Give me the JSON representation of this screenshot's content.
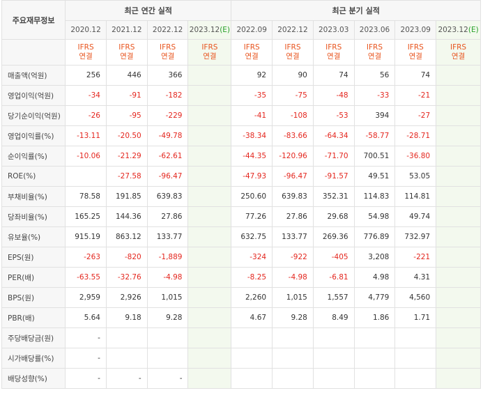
{
  "header": {
    "corner": "주요재무정보",
    "annual_group": "최근 연간 실적",
    "quarter_group": "최근 분기 실적",
    "periods": [
      {
        "label": "2020.12",
        "est": ""
      },
      {
        "label": "2021.12",
        "est": ""
      },
      {
        "label": "2022.12",
        "est": ""
      },
      {
        "label": "2023.12",
        "est": "(E)"
      },
      {
        "label": "2022.09",
        "est": ""
      },
      {
        "label": "2022.12",
        "est": ""
      },
      {
        "label": "2023.03",
        "est": ""
      },
      {
        "label": "2023.06",
        "est": ""
      },
      {
        "label": "2023.09",
        "est": ""
      },
      {
        "label": "2023.12",
        "est": "(E)"
      }
    ],
    "gaap_line1": "IFRS",
    "gaap_line2": "연결"
  },
  "rows": [
    {
      "label": "매출액(억원)",
      "values": [
        "256",
        "446",
        "366",
        "",
        "92",
        "90",
        "74",
        "56",
        "74",
        ""
      ]
    },
    {
      "label": "영업이익(억원)",
      "values": [
        "-34",
        "-91",
        "-182",
        "",
        "-35",
        "-75",
        "-48",
        "-33",
        "-21",
        ""
      ]
    },
    {
      "label": "당기순이익(억원)",
      "values": [
        "-26",
        "-95",
        "-229",
        "",
        "-41",
        "-108",
        "-53",
        "394",
        "-27",
        ""
      ]
    },
    {
      "label": "영업이익률(%)",
      "values": [
        "-13.11",
        "-20.50",
        "-49.78",
        "",
        "-38.34",
        "-83.66",
        "-64.34",
        "-58.77",
        "-28.71",
        ""
      ]
    },
    {
      "label": "순이익률(%)",
      "values": [
        "-10.06",
        "-21.29",
        "-62.61",
        "",
        "-44.35",
        "-120.96",
        "-71.70",
        "700.51",
        "-36.80",
        ""
      ]
    },
    {
      "label": "ROE(%)",
      "values": [
        "",
        "-27.58",
        "-96.47",
        "",
        "-47.93",
        "-96.47",
        "-91.57",
        "49.51",
        "53.05",
        ""
      ]
    },
    {
      "label": "부채비율(%)",
      "values": [
        "78.58",
        "191.85",
        "639.83",
        "",
        "250.60",
        "639.83",
        "352.31",
        "114.83",
        "114.81",
        ""
      ]
    },
    {
      "label": "당좌비율(%)",
      "values": [
        "165.25",
        "144.36",
        "27.86",
        "",
        "77.26",
        "27.86",
        "29.68",
        "54.98",
        "49.74",
        ""
      ]
    },
    {
      "label": "유보율(%)",
      "values": [
        "915.19",
        "863.12",
        "133.77",
        "",
        "632.75",
        "133.77",
        "269.36",
        "776.89",
        "732.97",
        ""
      ]
    },
    {
      "label": "EPS(원)",
      "values": [
        "-263",
        "-820",
        "-1,889",
        "",
        "-324",
        "-922",
        "-405",
        "3,208",
        "-221",
        ""
      ]
    },
    {
      "label": "PER(배)",
      "values": [
        "-63.55",
        "-32.76",
        "-4.98",
        "",
        "-8.25",
        "-4.98",
        "-6.81",
        "4.98",
        "4.31",
        ""
      ]
    },
    {
      "label": "BPS(원)",
      "values": [
        "2,959",
        "2,926",
        "1,015",
        "",
        "2,260",
        "1,015",
        "1,557",
        "4,779",
        "4,560",
        ""
      ]
    },
    {
      "label": "PBR(배)",
      "values": [
        "5.64",
        "9.18",
        "9.28",
        "",
        "4.67",
        "9.28",
        "8.49",
        "1.86",
        "1.71",
        ""
      ]
    },
    {
      "label": "주당배당금(원)",
      "values": [
        "-",
        "",
        "",
        "",
        "",
        "",
        "",
        "",
        "",
        ""
      ]
    },
    {
      "label": "시가배당률(%)",
      "values": [
        "-",
        "",
        "",
        "",
        "",
        "",
        "",
        "",
        "",
        ""
      ]
    },
    {
      "label": "배당성향(%)",
      "values": [
        "-",
        "-",
        "-",
        "",
        "",
        "",
        "",
        "",
        "",
        ""
      ]
    }
  ],
  "colors": {
    "negative": "#e4261e",
    "gaap": "#e8541e",
    "estimate_bg": "#f3f9ee",
    "estimate_text": "#27a127"
  }
}
